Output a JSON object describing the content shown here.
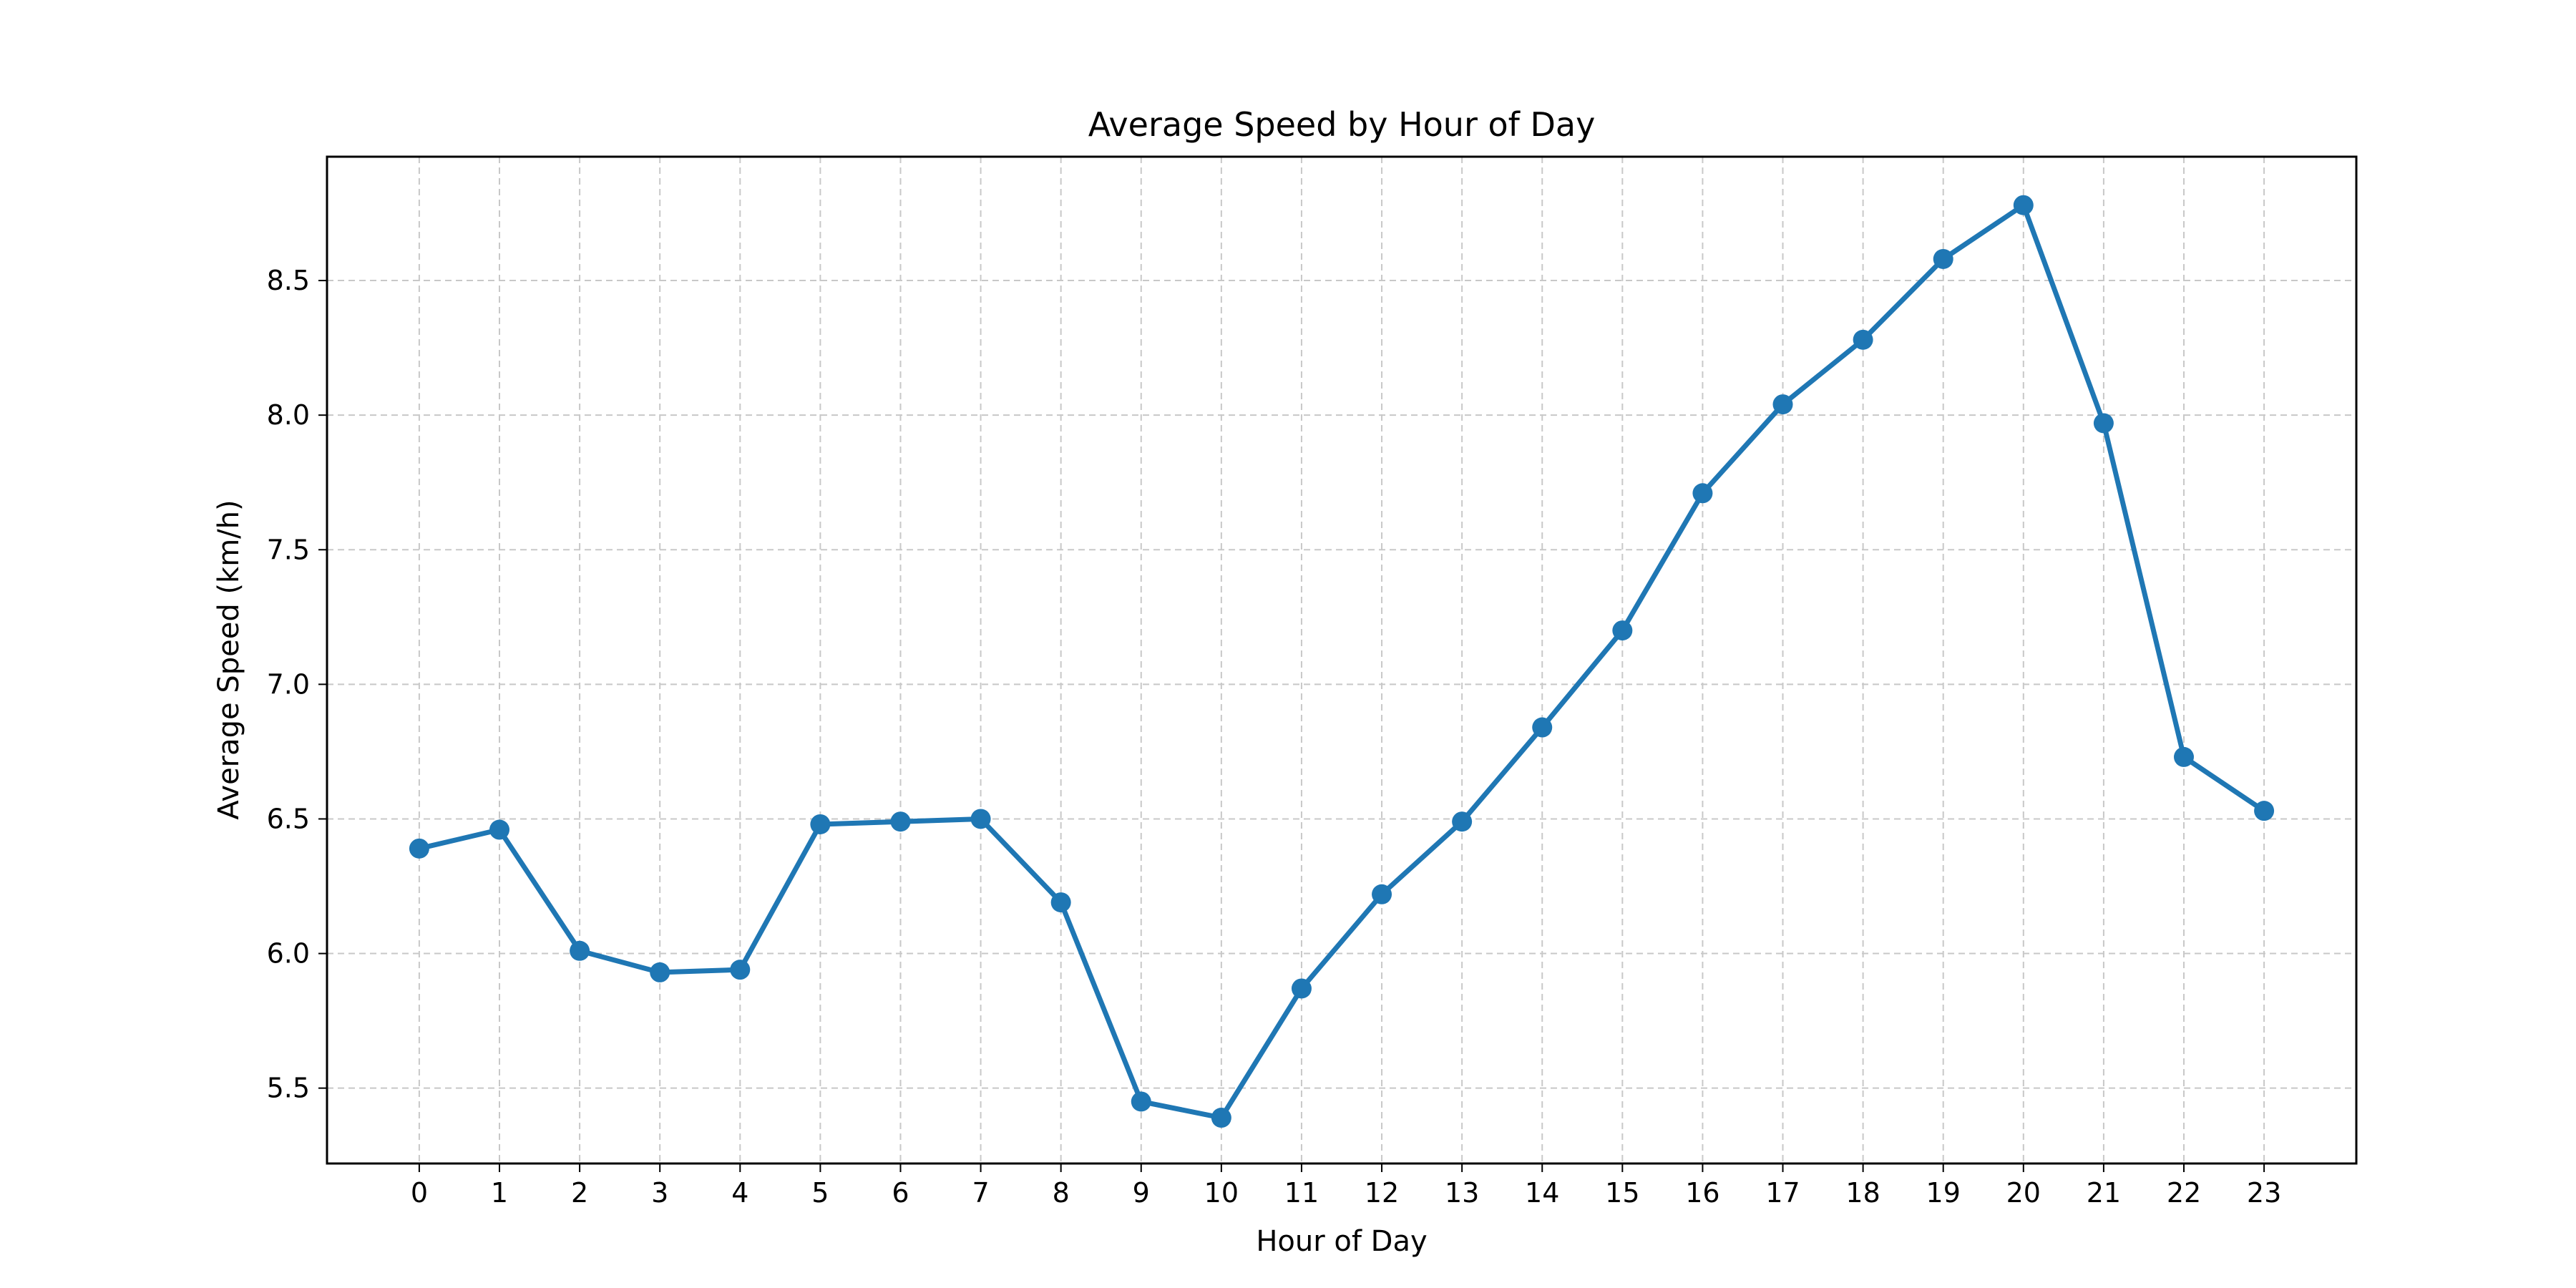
{
  "chart_data": {
    "type": "line",
    "title": "Average Speed by Hour of Day",
    "xlabel": "Hour of Day",
    "ylabel": "Average Speed (km/h)",
    "x": [
      0,
      1,
      2,
      3,
      4,
      5,
      6,
      7,
      8,
      9,
      10,
      11,
      12,
      13,
      14,
      15,
      16,
      17,
      18,
      19,
      20,
      21,
      22,
      23
    ],
    "series": [
      {
        "values": [
          6.39,
          6.46,
          6.01,
          5.93,
          5.94,
          6.48,
          6.49,
          6.5,
          6.19,
          5.45,
          5.39,
          5.87,
          6.22,
          6.49,
          6.84,
          7.2,
          7.71,
          8.04,
          8.28,
          8.58,
          8.78,
          7.97,
          6.73,
          6.53
        ],
        "color": "#1f77b4"
      }
    ],
    "xticks": [
      "0",
      "1",
      "2",
      "3",
      "4",
      "5",
      "6",
      "7",
      "8",
      "9",
      "10",
      "11",
      "12",
      "13",
      "14",
      "15",
      "16",
      "17",
      "18",
      "19",
      "20",
      "21",
      "22",
      "23"
    ],
    "yticks": [
      "5.5",
      "6.0",
      "6.5",
      "7.0",
      "7.5",
      "8.0",
      "8.5"
    ],
    "xlim": [
      -1.15,
      24.15
    ],
    "ylim": [
      5.22,
      8.96
    ],
    "grid": true,
    "grid_style": "dashed",
    "grid_color": "#c8c8c8",
    "marker": "circle",
    "legend": false
  }
}
